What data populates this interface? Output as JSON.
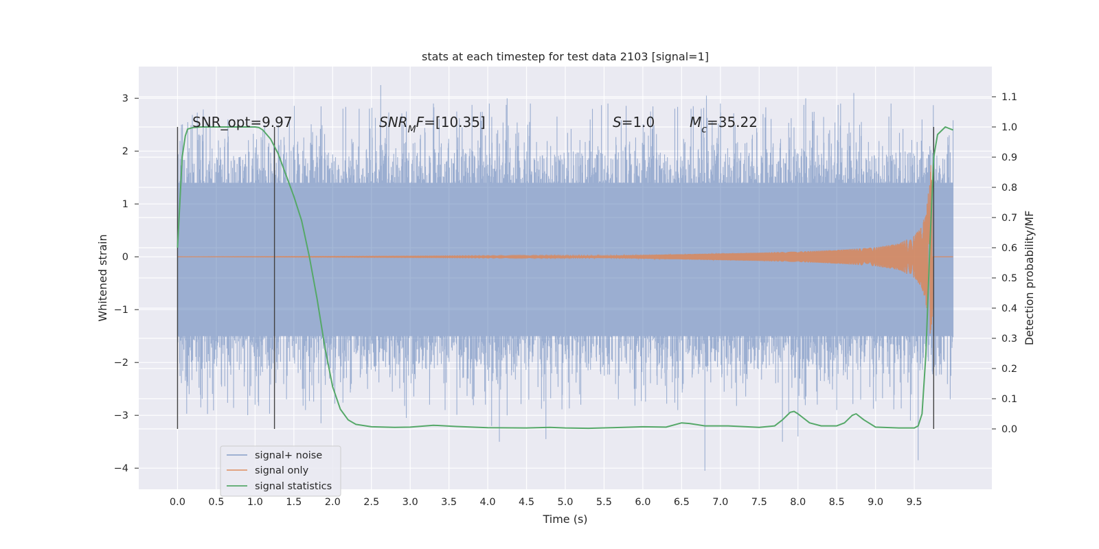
{
  "chart_data": {
    "type": "line",
    "title": "stats at each timestep for test data 2103 [signal=1]",
    "xlabel": "Time (s)",
    "ylabel": "Whitened strain",
    "y2label": "Detection probability/MF",
    "xlim": [
      -0.5,
      10.5
    ],
    "ylim": [
      -4.4,
      3.6
    ],
    "y2lim": [
      -0.2,
      1.2
    ],
    "xticks": [
      "0.0",
      "0.5",
      "1.0",
      "1.5",
      "2.0",
      "2.5",
      "3.0",
      "3.5",
      "4.0",
      "4.5",
      "5.0",
      "5.5",
      "6.0",
      "6.5",
      "7.0",
      "7.5",
      "8.0",
      "8.5",
      "9.0",
      "9.5"
    ],
    "yticks": [
      "3",
      "2",
      "1",
      "0",
      "−1",
      "−2",
      "−3",
      "−4"
    ],
    "y2ticks": [
      "1.1",
      "1.0",
      "0.9",
      "0.8",
      "0.7",
      "0.6",
      "0.5",
      "0.4",
      "0.3",
      "0.2",
      "0.1",
      "0.0"
    ],
    "grid": true,
    "legend_position": "lower-left",
    "annotations": {
      "snr_opt": "SNR_opt=9.97",
      "snr_mf_main": "SNR",
      "snr_mf_sub": "M",
      "snr_mf_rest": "F",
      "snr_mf_value": "=[10.35]",
      "s_label": "S",
      "s_value": "=1.0",
      "mc_main": "M",
      "mc_sub": "c",
      "mc_value": "=35.22"
    },
    "vlines_x": [
      0.0,
      1.25,
      9.75
    ],
    "series": [
      {
        "name": "signal+ noise",
        "color": "#4c72b0",
        "opacity": 0.5,
        "x_range": [
          0.0,
          10.0
        ],
        "typical_envelope": [
          -1.5,
          1.4
        ],
        "peak_spikes": [
          [
            0.05,
            2.5
          ],
          [
            0.42,
            2.5
          ],
          [
            0.65,
            2.6
          ],
          [
            1.3,
            2.5
          ],
          [
            2.62,
            3.25
          ],
          [
            2.95,
            2.75
          ],
          [
            3.3,
            2.9
          ],
          [
            3.6,
            2.75
          ],
          [
            4.02,
            2.9
          ],
          [
            4.25,
            3.0
          ],
          [
            4.55,
            2.9
          ],
          [
            5.35,
            2.8
          ],
          [
            5.55,
            2.9
          ],
          [
            6.1,
            2.75
          ],
          [
            6.65,
            2.85
          ],
          [
            6.82,
            3.05
          ],
          [
            7.0,
            2.9
          ],
          [
            7.55,
            2.7
          ],
          [
            8.1,
            3.0
          ],
          [
            8.55,
            2.9
          ],
          [
            8.72,
            3.1
          ],
          [
            9.2,
            2.9
          ],
          [
            9.95,
            2.3
          ]
        ],
        "trough_spikes": [
          [
            0.15,
            -2.6
          ],
          [
            0.3,
            -2.85
          ],
          [
            1.0,
            -2.8
          ],
          [
            1.65,
            -2.9
          ],
          [
            1.85,
            -3.15
          ],
          [
            2.45,
            -2.5
          ],
          [
            2.95,
            -3.05
          ],
          [
            3.25,
            -2.8
          ],
          [
            3.45,
            -2.9
          ],
          [
            4.05,
            -3.2
          ],
          [
            4.15,
            -3.5
          ],
          [
            4.25,
            -3.0
          ],
          [
            4.75,
            -3.45
          ],
          [
            5.2,
            -2.8
          ],
          [
            6.45,
            -2.9
          ],
          [
            6.8,
            -4.05
          ],
          [
            7.8,
            -3.5
          ],
          [
            8.0,
            -3.4
          ],
          [
            8.5,
            -2.9
          ],
          [
            9.45,
            -3.1
          ],
          [
            9.55,
            -3.85
          ]
        ]
      },
      {
        "name": "signal only",
        "color": "#dd8452",
        "x": [
          0.0,
          5.5,
          6.5,
          7.5,
          8.0,
          8.5,
          9.0,
          9.3,
          9.5,
          9.6,
          9.65,
          9.7,
          9.72,
          9.75,
          10.0
        ],
        "amplitude": [
          0.0,
          0.02,
          0.05,
          0.08,
          0.1,
          0.13,
          0.18,
          0.25,
          0.4,
          0.6,
          0.9,
          1.4,
          2.0,
          0.0,
          0.0
        ]
      },
      {
        "name": "signal statistics",
        "color": "#55a868",
        "axis": "right",
        "x": [
          0.0,
          0.03,
          0.06,
          0.1,
          0.13,
          0.2,
          0.3,
          0.5,
          0.8,
          1.0,
          1.05,
          1.1,
          1.2,
          1.3,
          1.4,
          1.5,
          1.6,
          1.7,
          1.8,
          1.9,
          2.0,
          2.1,
          2.2,
          2.3,
          2.5,
          2.8,
          3.0,
          3.3,
          3.6,
          4.0,
          4.5,
          4.8,
          5.0,
          5.3,
          5.6,
          6.0,
          6.3,
          6.5,
          6.6,
          6.8,
          7.1,
          7.5,
          7.7,
          7.8,
          7.9,
          7.95,
          8.0,
          8.15,
          8.3,
          8.5,
          8.6,
          8.7,
          8.75,
          8.85,
          9.0,
          9.3,
          9.5,
          9.55,
          9.6,
          9.65,
          9.7,
          9.75,
          9.8,
          9.9,
          10.0
        ],
        "y": [
          0.6,
          0.75,
          0.9,
          0.97,
          0.993,
          0.998,
          1.0,
          1.0,
          1.0,
          1.0,
          0.998,
          0.99,
          0.96,
          0.91,
          0.84,
          0.77,
          0.69,
          0.57,
          0.43,
          0.27,
          0.14,
          0.065,
          0.03,
          0.015,
          0.007,
          0.005,
          0.006,
          0.012,
          0.008,
          0.004,
          0.003,
          0.005,
          0.003,
          0.002,
          0.004,
          0.007,
          0.006,
          0.02,
          0.018,
          0.01,
          0.01,
          0.005,
          0.01,
          0.03,
          0.055,
          0.058,
          0.05,
          0.02,
          0.01,
          0.01,
          0.02,
          0.045,
          0.05,
          0.03,
          0.006,
          0.003,
          0.003,
          0.01,
          0.05,
          0.25,
          0.6,
          0.9,
          0.975,
          1.0,
          0.99
        ]
      }
    ]
  }
}
